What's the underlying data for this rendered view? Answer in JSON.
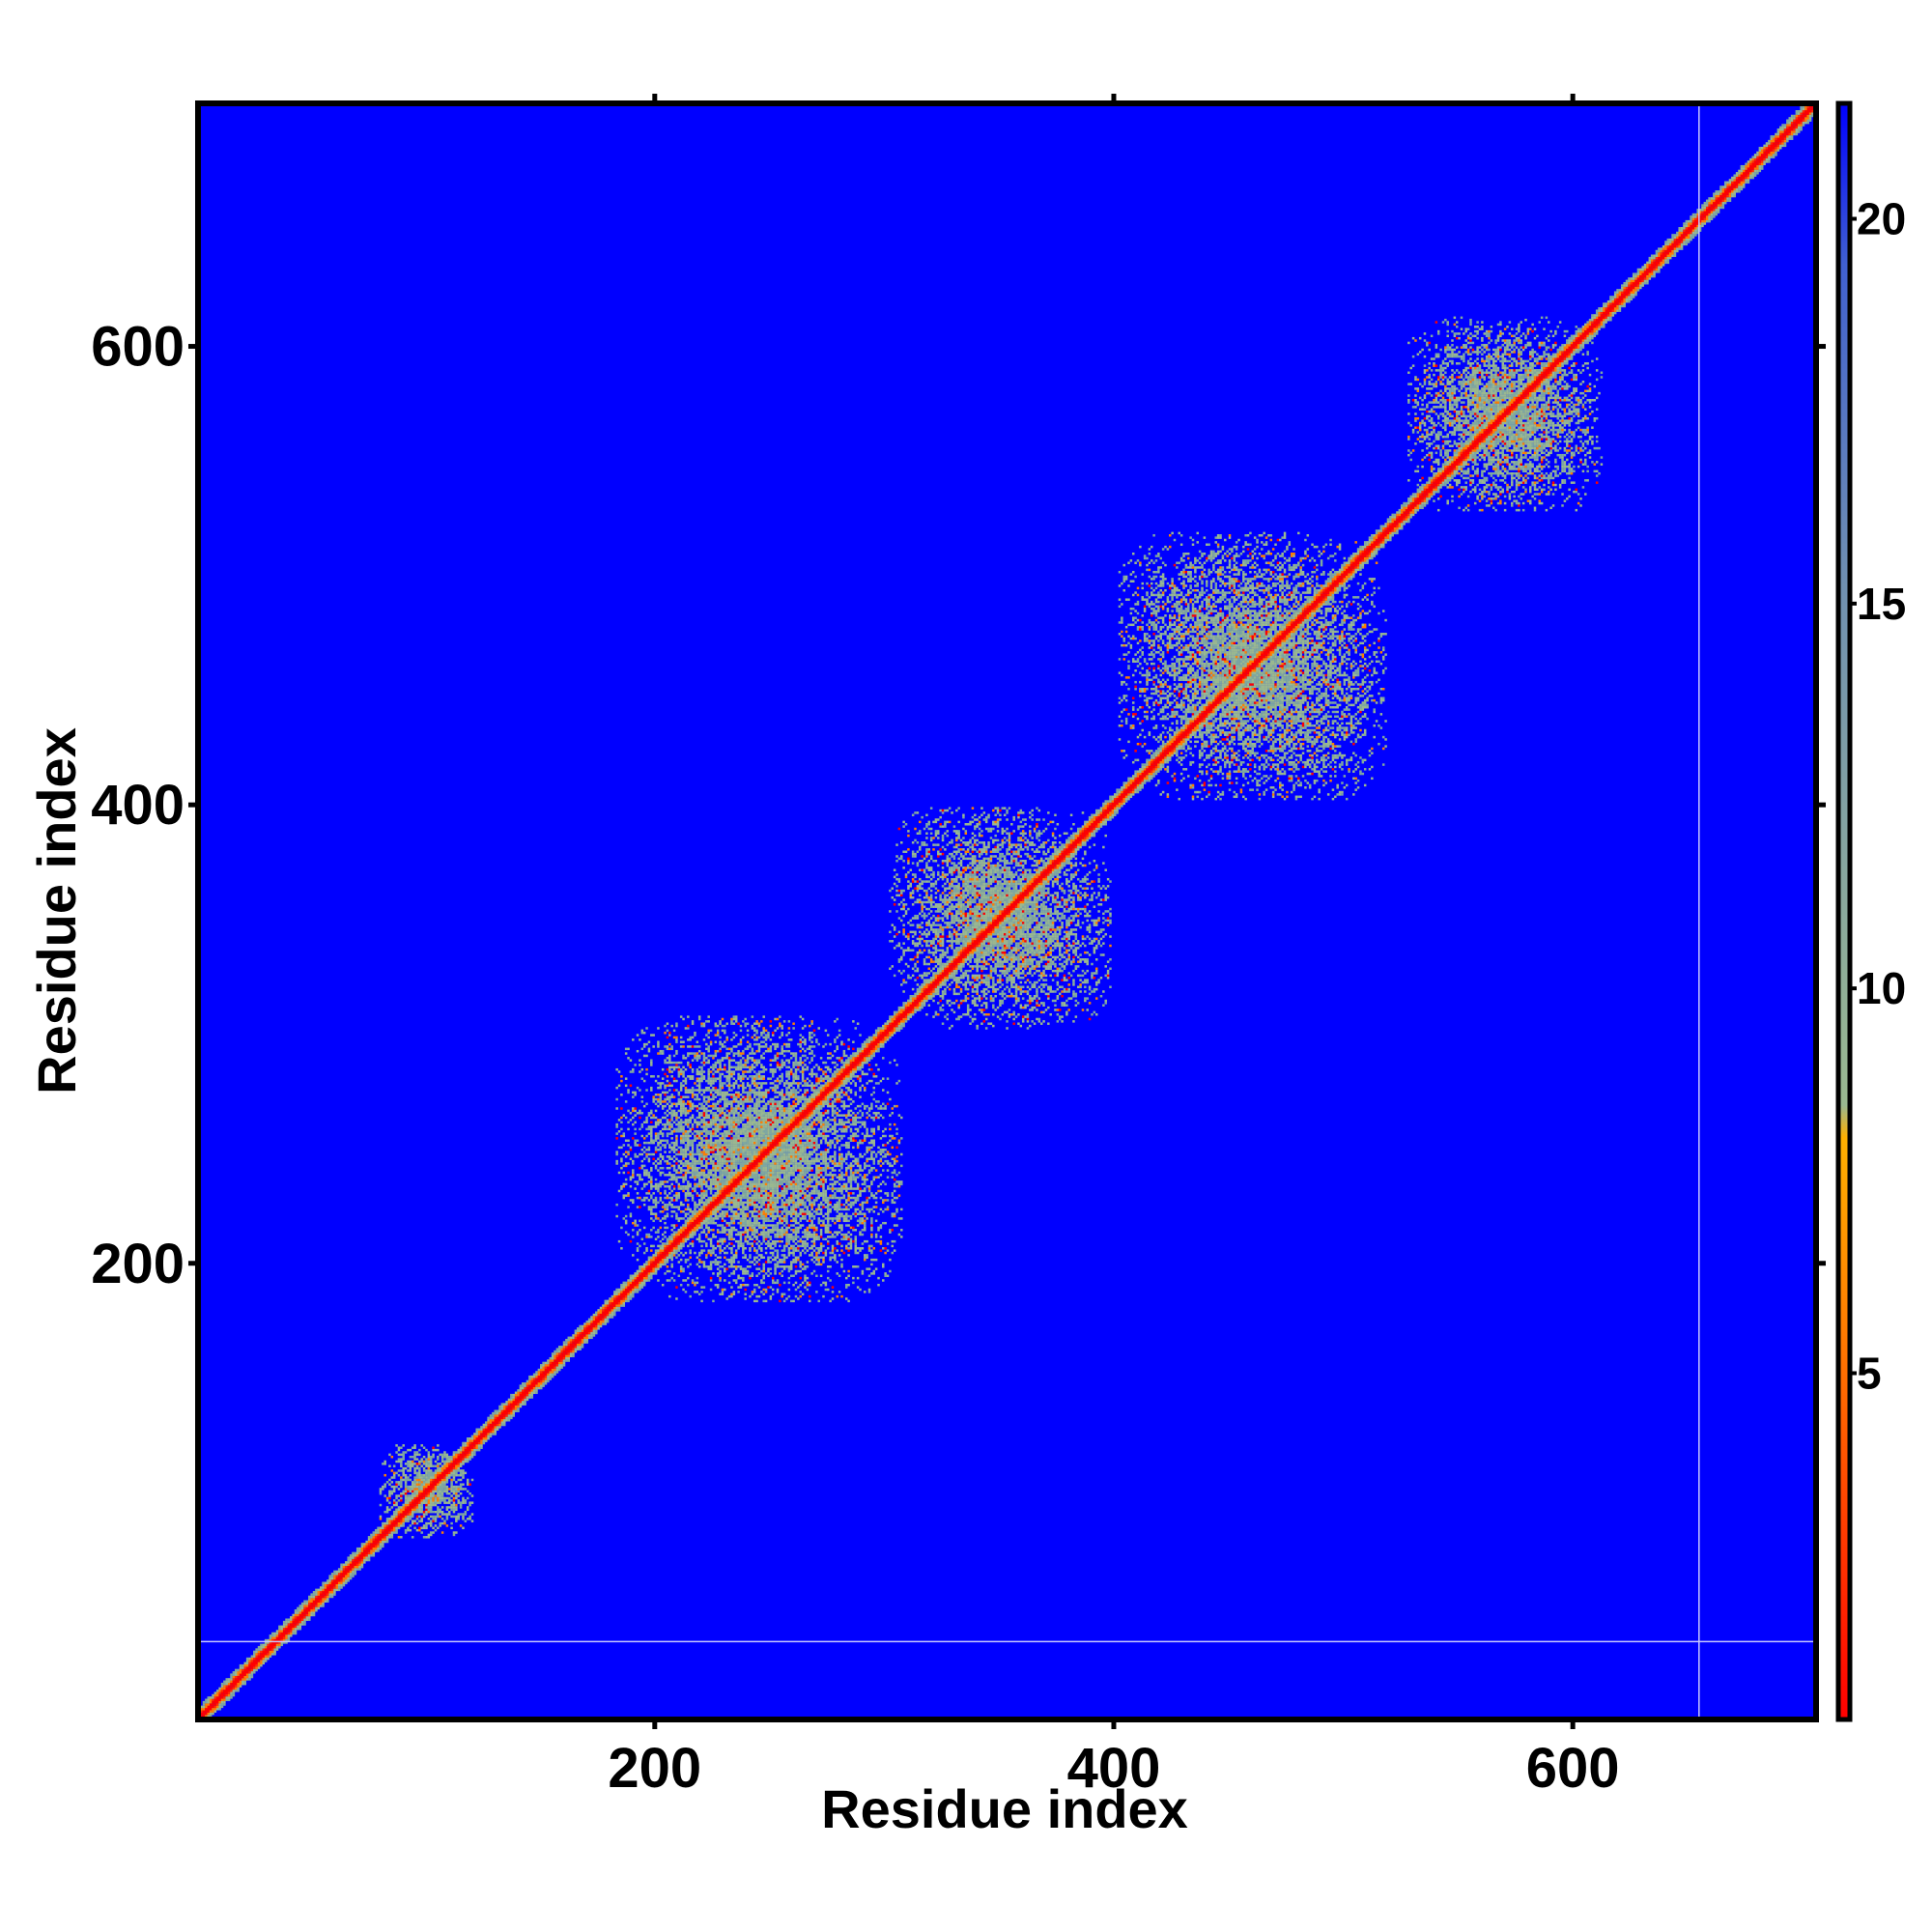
{
  "chart_data": {
    "type": "heatmap",
    "title": "",
    "xlabel": "Residue index",
    "ylabel": "Residue index",
    "xlim": [
      1,
      706
    ],
    "ylim": [
      1,
      706
    ],
    "x_ticks": [
      200,
      400,
      600
    ],
    "y_ticks": [
      200,
      400,
      600
    ],
    "x_tick_labels": [
      "200",
      "400",
      "600"
    ],
    "y_tick_labels": [
      "200",
      "400",
      "600"
    ],
    "colorbar": {
      "range": [
        0.5,
        21.5
      ],
      "ticks": [
        5,
        10,
        15,
        20
      ],
      "tick_labels": [
        "5",
        "10",
        "15",
        "20"
      ],
      "colors": [
        "#ff0000",
        "#ff8000",
        "#ffb000",
        "#9ab890",
        "#7090b0",
        "#0000ff"
      ]
    },
    "background_value": 21.5,
    "background_color": "#0000ff",
    "diagonal_color": "#ff0000",
    "blocks": [
      {
        "center": 100,
        "half_width": 20
      },
      {
        "center": 245,
        "half_width": 62
      },
      {
        "center": 350,
        "half_width": 48
      },
      {
        "center": 460,
        "half_width": 58
      },
      {
        "center": 570,
        "half_width": 42
      }
    ],
    "reference_lines": {
      "x": 655,
      "y": 35
    }
  }
}
